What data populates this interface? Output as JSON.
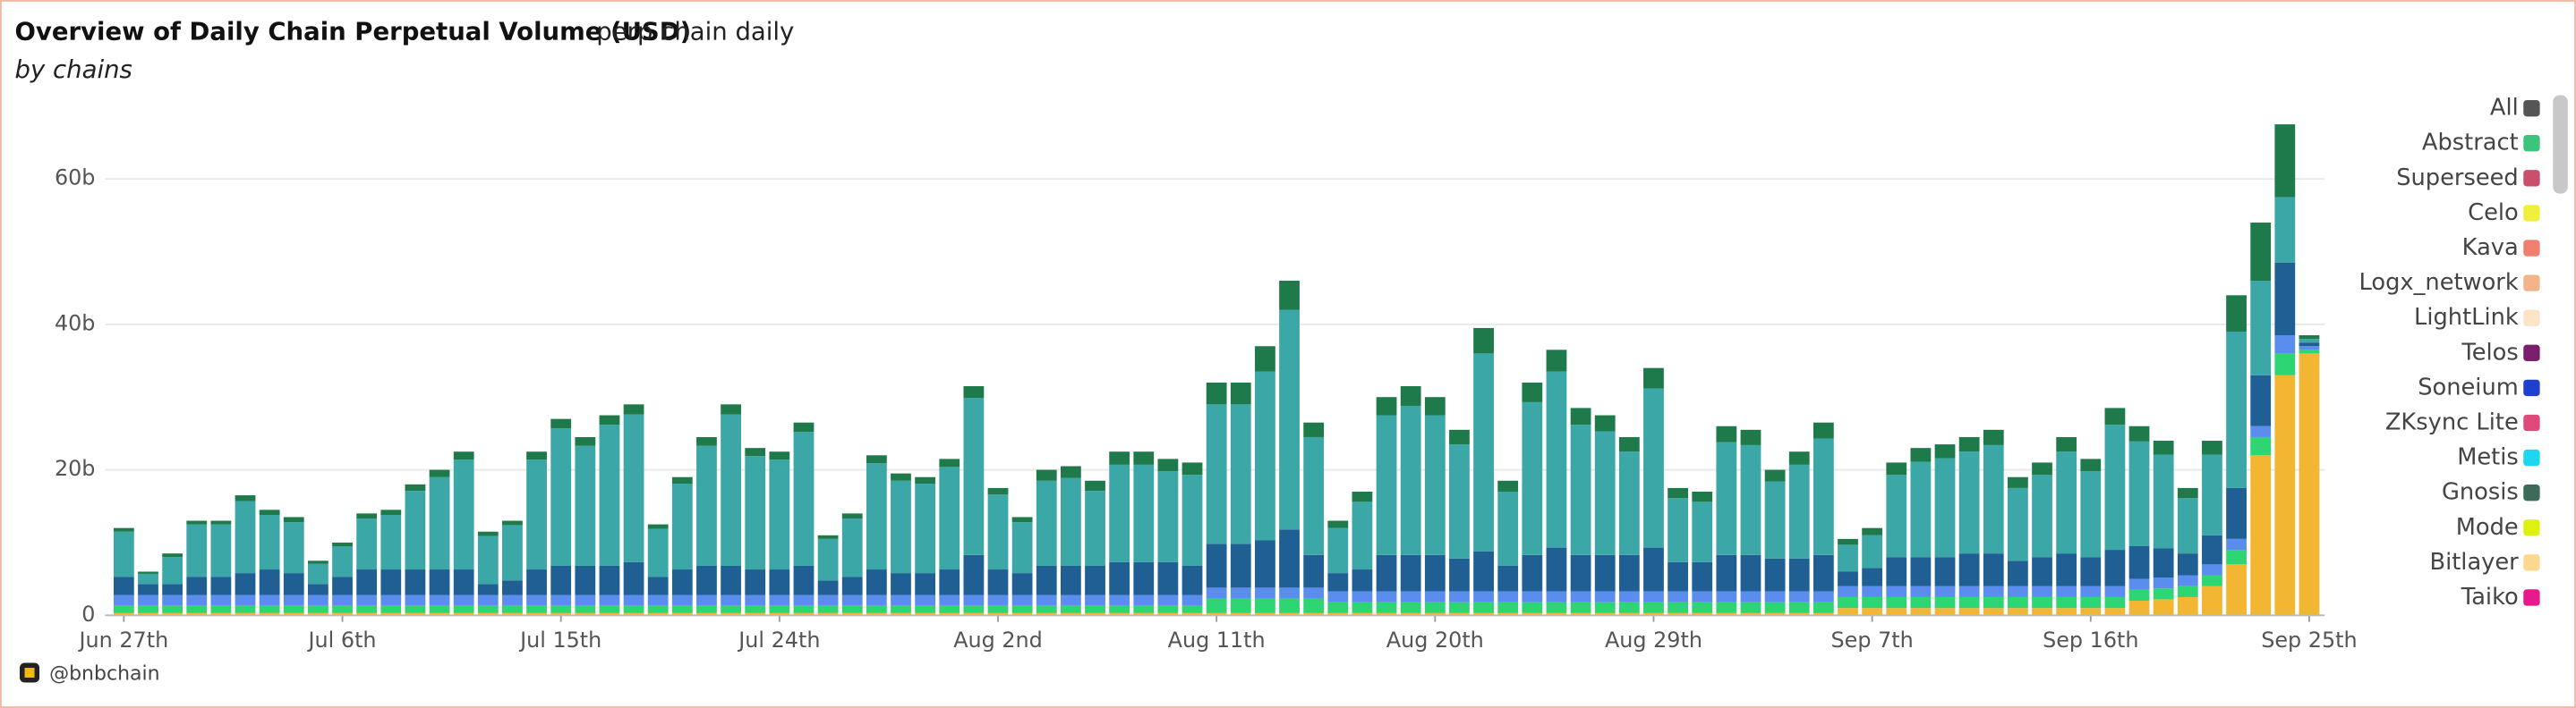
{
  "chart_data": {
    "type": "stacked_bar",
    "title": "Overview of Daily Chain Perpetual Volume (USD)",
    "subtitle": "perp chain daily",
    "description": "by chains",
    "source": "@bnbchain",
    "categories": [
      "Jun 27th",
      null,
      null,
      null,
      null,
      null,
      null,
      null,
      null,
      "Jul 6th",
      null,
      null,
      null,
      null,
      null,
      null,
      null,
      null,
      "Jul 15th",
      null,
      null,
      null,
      null,
      null,
      null,
      null,
      null,
      "Jul 24th",
      null,
      null,
      null,
      null,
      null,
      null,
      null,
      null,
      "Aug 2nd",
      null,
      null,
      null,
      null,
      null,
      null,
      null,
      null,
      "Aug 11th",
      null,
      null,
      null,
      null,
      null,
      null,
      null,
      null,
      "Aug 20th",
      null,
      null,
      null,
      null,
      null,
      null,
      null,
      null,
      "Aug 29th",
      null,
      null,
      null,
      null,
      null,
      null,
      null,
      null,
      "Sep 7th",
      null,
      null,
      null,
      null,
      null,
      null,
      null,
      null,
      "Sep 16th",
      null,
      null,
      null,
      null,
      null,
      null,
      null,
      null,
      "Sep 25th"
    ],
    "series": [
      {
        "color": "#f2b632",
        "values": [
          0.3,
          0.3,
          0.3,
          0.3,
          0.3,
          0.3,
          0.3,
          0.3,
          0.3,
          0.3,
          0.3,
          0.3,
          0.3,
          0.3,
          0.3,
          0.3,
          0.3,
          0.3,
          0.3,
          0.3,
          0.3,
          0.3,
          0.3,
          0.3,
          0.3,
          0.3,
          0.3,
          0.3,
          0.3,
          0.3,
          0.3,
          0.3,
          0.3,
          0.3,
          0.3,
          0.3,
          0.3,
          0.3,
          0.3,
          0.3,
          0.3,
          0.3,
          0.3,
          0.3,
          0.3,
          0.3,
          0.3,
          0.3,
          0.3,
          0.3,
          0.3,
          0.3,
          0.3,
          0.3,
          0.3,
          0.3,
          0.3,
          0.3,
          0.3,
          0.3,
          0.3,
          0.3,
          0.3,
          0.3,
          0.3,
          0.3,
          0.3,
          0.3,
          0.3,
          0.3,
          0.3,
          1,
          1,
          1,
          1,
          1,
          1,
          1,
          1,
          1,
          1,
          1,
          1,
          2,
          2.2,
          2.5,
          4,
          7,
          22,
          33,
          36
        ]
      },
      {
        "color": "#2ed573",
        "values": [
          1,
          1,
          1,
          1,
          1,
          1,
          1,
          1,
          1,
          1,
          1,
          1,
          1,
          1,
          1,
          1,
          1,
          1,
          1,
          1,
          1,
          1,
          1,
          1,
          1,
          1,
          1,
          1,
          1,
          1,
          1,
          1,
          1,
          1,
          1,
          1,
          1,
          1,
          1,
          1,
          1,
          1,
          1,
          1,
          1,
          2,
          2,
          2,
          2,
          2,
          1.5,
          1.5,
          1.5,
          1.5,
          1.5,
          1.5,
          1.5,
          1.5,
          1.5,
          1.5,
          1.5,
          1.5,
          1.5,
          1.5,
          1.5,
          1.5,
          1.5,
          1.5,
          1.5,
          1.5,
          1.5,
          1.5,
          1.5,
          1.5,
          1.5,
          1.5,
          1.5,
          1.5,
          1.5,
          1.5,
          1.5,
          1.5,
          1.5,
          1.5,
          1.5,
          1.5,
          1.5,
          2,
          2.5,
          3,
          0.5
        ]
      },
      {
        "color": "#5b8def",
        "values": [
          1.5,
          1.5,
          1.5,
          1.5,
          1.5,
          1.5,
          1.5,
          1.5,
          1.5,
          1.5,
          1.5,
          1.5,
          1.5,
          1.5,
          1.5,
          1.5,
          1.5,
          1.5,
          1.5,
          1.5,
          1.5,
          1.5,
          1.5,
          1.5,
          1.5,
          1.5,
          1.5,
          1.5,
          1.5,
          1.5,
          1.5,
          1.5,
          1.5,
          1.5,
          1.5,
          1.5,
          1.5,
          1.5,
          1.5,
          1.5,
          1.5,
          1.5,
          1.5,
          1.5,
          1.5,
          1.5,
          1.5,
          1.5,
          1.5,
          1.5,
          1.5,
          1.5,
          1.5,
          1.5,
          1.5,
          1.5,
          1.5,
          1.5,
          1.5,
          1.5,
          1.5,
          1.5,
          1.5,
          1.5,
          1.5,
          1.5,
          1.5,
          1.5,
          1.5,
          1.5,
          1.5,
          1.5,
          1.5,
          1.5,
          1.5,
          1.5,
          1.5,
          1.5,
          1.5,
          1.5,
          1.5,
          1.5,
          1.5,
          1.5,
          1.5,
          1.5,
          1.5,
          1.5,
          1.5,
          2.5,
          0.5
        ]
      },
      {
        "color": "#1f5f94",
        "values": [
          2.5,
          1.5,
          1.5,
          2.5,
          2.5,
          3,
          3.5,
          3,
          1.5,
          2.5,
          3.5,
          3.5,
          3.5,
          3.5,
          3.5,
          1.5,
          2,
          3.5,
          4,
          4,
          4,
          4.5,
          2.5,
          3.5,
          4,
          4,
          3.5,
          3.5,
          4,
          2,
          2.5,
          3.5,
          3,
          3,
          3.5,
          5.5,
          3.5,
          3,
          4,
          4,
          4,
          4.5,
          4.5,
          4.5,
          4,
          6,
          6,
          6.5,
          8,
          4.5,
          2.5,
          3,
          5,
          5,
          5,
          4.5,
          5.5,
          3.5,
          5,
          6,
          5,
          5,
          5,
          6,
          4,
          4,
          5,
          5,
          4.5,
          4.5,
          5,
          2,
          2.5,
          4,
          4,
          4,
          4.5,
          4.5,
          3.5,
          4,
          4.5,
          4,
          5,
          4.5,
          4,
          3,
          4,
          7,
          7,
          10,
          0.5
        ]
      },
      {
        "color": "#3ba7a6",
        "values": [
          6.2,
          1.4,
          3.7,
          7.2,
          7.2,
          9.9,
          7.5,
          7,
          2.8,
          4.2,
          7,
          7.5,
          10.8,
          12.7,
          15.1,
          6.6,
          7.6,
          15.1,
          18.9,
          16.5,
          19.4,
          20.3,
          6.6,
          11.8,
          16.5,
          20.8,
          15.6,
          15.1,
          18.4,
          5.7,
          8,
          14.6,
          12.7,
          12.3,
          14.1,
          21.6,
          10.3,
          7,
          11.7,
          12.1,
          10.3,
          13.4,
          13.4,
          12.5,
          12.5,
          19.2,
          19.2,
          23.2,
          30.2,
          16.2,
          6.2,
          9.3,
          19.2,
          20.5,
          19.2,
          15.7,
          27.2,
          10.2,
          21,
          24.2,
          17.9,
          17,
          14.2,
          21.9,
          8.8,
          8.3,
          15.5,
          15.1,
          10.6,
          12.9,
          16,
          3.7,
          4.5,
          11.3,
          13.1,
          13.6,
          14,
          14.9,
          10,
          11.3,
          14,
          11.8,
          17.2,
          14.4,
          12.9,
          7.6,
          11.1,
          21.5,
          13,
          9,
          0.5
        ]
      },
      {
        "color": "#1e7a4a",
        "values": [
          0.5,
          0.3,
          0.5,
          0.5,
          0.5,
          0.8,
          0.7,
          0.7,
          0.4,
          0.5,
          0.7,
          0.7,
          0.9,
          1,
          1.1,
          0.6,
          0.6,
          1.1,
          1.3,
          1.2,
          1.3,
          1.4,
          0.6,
          0.9,
          1.2,
          1.4,
          1.1,
          1.1,
          1.3,
          0.5,
          0.7,
          1.1,
          1,
          0.9,
          1.1,
          1.6,
          0.9,
          0.7,
          1.5,
          1.6,
          1.4,
          1.8,
          1.8,
          1.7,
          1.7,
          3,
          3,
          3.5,
          4,
          2,
          1,
          1.4,
          2.5,
          2.7,
          2.5,
          2,
          3.5,
          1.5,
          2.7,
          3,
          2.3,
          2.2,
          2,
          2.8,
          1.4,
          1.4,
          2.2,
          2.1,
          1.6,
          1.8,
          2.2,
          0.8,
          1,
          1.7,
          1.9,
          1.9,
          2,
          2.1,
          1.5,
          1.7,
          2,
          1.7,
          2.3,
          2.1,
          1.9,
          1.4,
          1.9,
          5,
          8,
          10,
          0.5
        ]
      }
    ],
    "ylim": [
      0,
      70
    ],
    "yticks": [
      0,
      {
        "value": 20,
        "label": "20b"
      },
      {
        "value": 40,
        "label": "40b"
      },
      {
        "value": 60,
        "label": "60b"
      }
    ],
    "grid": true,
    "legend_position": "right",
    "legend": [
      {
        "name": "All",
        "color": "#555555"
      },
      {
        "name": "Abstract",
        "color": "#3cc47c"
      },
      {
        "name": "Superseed",
        "color": "#c94f6d"
      },
      {
        "name": "Celo",
        "color": "#f0f03c"
      },
      {
        "name": "Kava",
        "color": "#f07f6f"
      },
      {
        "name": "Logx_network",
        "color": "#f3b48a"
      },
      {
        "name": "LightLink",
        "color": "#fde3c8"
      },
      {
        "name": "Telos",
        "color": "#7a1f6e"
      },
      {
        "name": "Soneium",
        "color": "#1f3fd0"
      },
      {
        "name": "ZKsync Lite",
        "color": "#e04a7a"
      },
      {
        "name": "Metis",
        "color": "#1fd6ef"
      },
      {
        "name": "Gnosis",
        "color": "#3d6b5a"
      },
      {
        "name": "Mode",
        "color": "#dff20f"
      },
      {
        "name": "Bitlayer",
        "color": "#fcd88e"
      },
      {
        "name": "Taiko",
        "color": "#e8198b"
      }
    ]
  }
}
